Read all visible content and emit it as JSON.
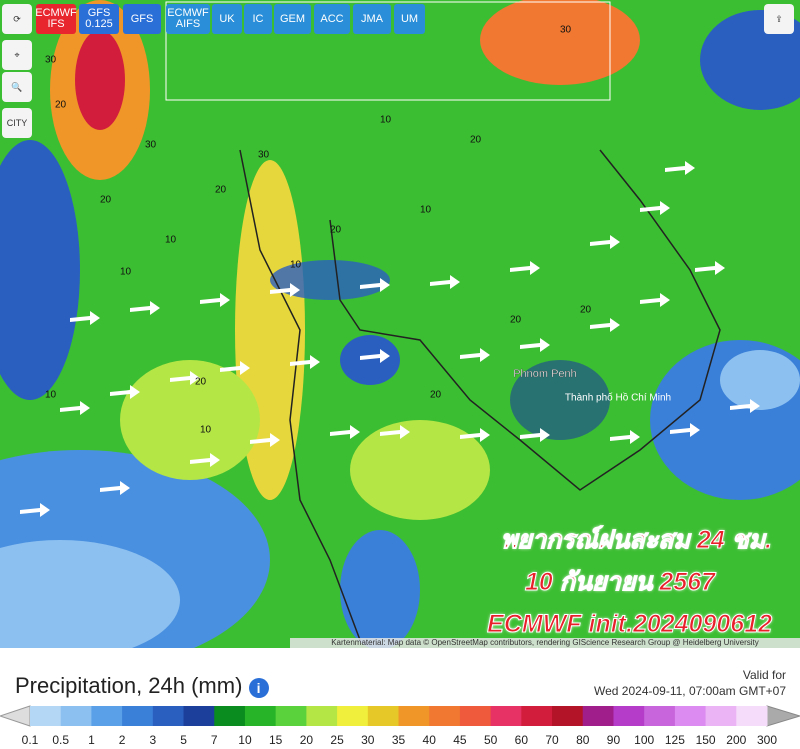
{
  "toolbar": {
    "models": [
      "ECMWF IFS",
      "GFS 0.125",
      "GFS",
      "ECMWF AIFS",
      "UK",
      "IC",
      "GEM",
      "ACC",
      "JMA",
      "UM"
    ],
    "city": "CITY"
  },
  "map": {
    "places": [
      "Phnom Penh",
      "Thành phố Hồ Chí Minh"
    ],
    "contour_labels": [
      "30",
      "20",
      "30",
      "20",
      "10",
      "20",
      "30",
      "10",
      "20",
      "10",
      "20",
      "20",
      "10",
      "10",
      "20",
      "20",
      "10",
      "20",
      "10",
      "30"
    ],
    "overlay": [
      "พยากรณ์ฝนสะสม 24 ชม.",
      "10 กันยายน 2567",
      "ECMWF init.2024090612"
    ],
    "attribution": "Kartenmaterial: Map data © OpenStreetMap contributors, rendering GIScience Research Group @ Heidelberg University"
  },
  "footer": {
    "title": "Precipitation, 24h (mm)",
    "valid_label": "Valid for",
    "valid_time": "Wed 2024-09-11, 07:00am GMT+07"
  },
  "legend": {
    "labels": [
      "0.1",
      "0.5",
      "1",
      "2",
      "3",
      "5",
      "7",
      "10",
      "15",
      "20",
      "25",
      "30",
      "35",
      "40",
      "45",
      "50",
      "60",
      "70",
      "80",
      "90",
      "100",
      "125",
      "150",
      "200",
      "300"
    ],
    "colors": [
      "#b4d7f5",
      "#8cc0f0",
      "#5aa0e8",
      "#3a7fd8",
      "#2a5fc0",
      "#1c3f9c",
      "#0a8c1e",
      "#28b428",
      "#5ad23c",
      "#b4e646",
      "#f0f03c",
      "#e6c828",
      "#f09628",
      "#f07830",
      "#f05a3c",
      "#e63264",
      "#d21e3c",
      "#b41428",
      "#a01e8c",
      "#b43cc8",
      "#c864dc",
      "#dc8cf0",
      "#eab4f5",
      "#f5dcfa"
    ]
  }
}
